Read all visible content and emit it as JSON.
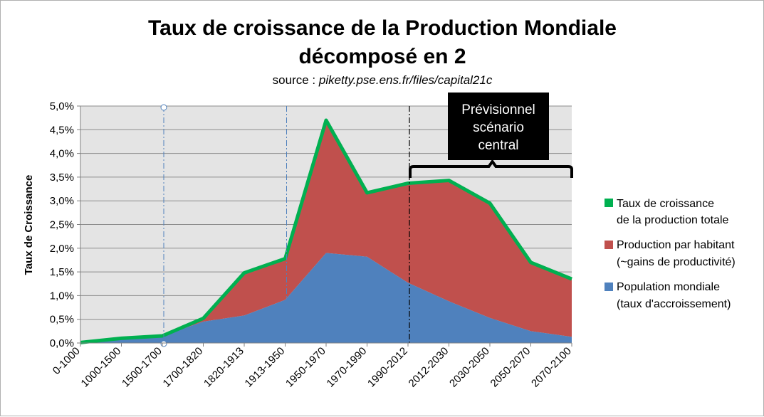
{
  "chart_data": {
    "type": "area",
    "title_lines": [
      "Taux de croissance de la Production Mondiale",
      "décomposé en 2"
    ],
    "subtitle_prefix": "source : ",
    "subtitle_link": "piketty.pse.ens.fr/files/capital21c",
    "ylabel": "Taux de Croissance",
    "xlabel": "",
    "ylim": [
      0,
      5.0
    ],
    "yticks": [
      "0,0%",
      "0,5%",
      "1,0%",
      "1,5%",
      "2,0%",
      "2,5%",
      "3,0%",
      "3,5%",
      "4,0%",
      "4,5%",
      "5,0%"
    ],
    "ytick_values": [
      0,
      0.5,
      1.0,
      1.5,
      2.0,
      2.5,
      3.0,
      3.5,
      4.0,
      4.5,
      5.0
    ],
    "grid": true,
    "categories": [
      "0-1000",
      "1000-1500",
      "1500-1700",
      "1700-1820",
      "1820-1913",
      "1913-1950",
      "1950-1970",
      "1970-1990",
      "1990-2012",
      "2012-2030",
      "2030-2050",
      "2050-2070",
      "2070-2100"
    ],
    "series": [
      {
        "name": "Taux de croissance de la production totale",
        "legend_lines": [
          "Taux de croissance",
          "de la production totale"
        ],
        "type": "line",
        "color": "#00b050",
        "values": [
          0.01,
          0.1,
          0.15,
          0.52,
          1.48,
          1.78,
          4.7,
          3.17,
          3.37,
          3.43,
          2.95,
          1.7,
          1.35
        ]
      },
      {
        "name": "Production par habitant (~gains de productivité)",
        "legend_lines": [
          "Production par habitant",
          "(~gains de productivité)"
        ],
        "type": "area",
        "color": "#c0504d",
        "values": [
          0.0,
          0.0,
          0.0,
          0.07,
          0.9,
          0.87,
          2.8,
          1.35,
          2.1,
          2.55,
          2.42,
          1.45,
          1.22
        ]
      },
      {
        "name": "Population mondiale (taux d'accroissement)",
        "legend_lines": [
          "Population mondiale",
          "(taux d'accroissement)"
        ],
        "type": "area",
        "color": "#4f81bd",
        "values": [
          0.01,
          0.1,
          0.15,
          0.45,
          0.58,
          0.91,
          1.9,
          1.82,
          1.27,
          0.88,
          0.53,
          0.25,
          0.13
        ]
      }
    ],
    "legend_position": "right",
    "annotation": {
      "lines": [
        "Prévisionnel",
        "scénario",
        "central"
      ],
      "spans_categories": [
        "1990-2012",
        "2070-2100"
      ]
    }
  }
}
